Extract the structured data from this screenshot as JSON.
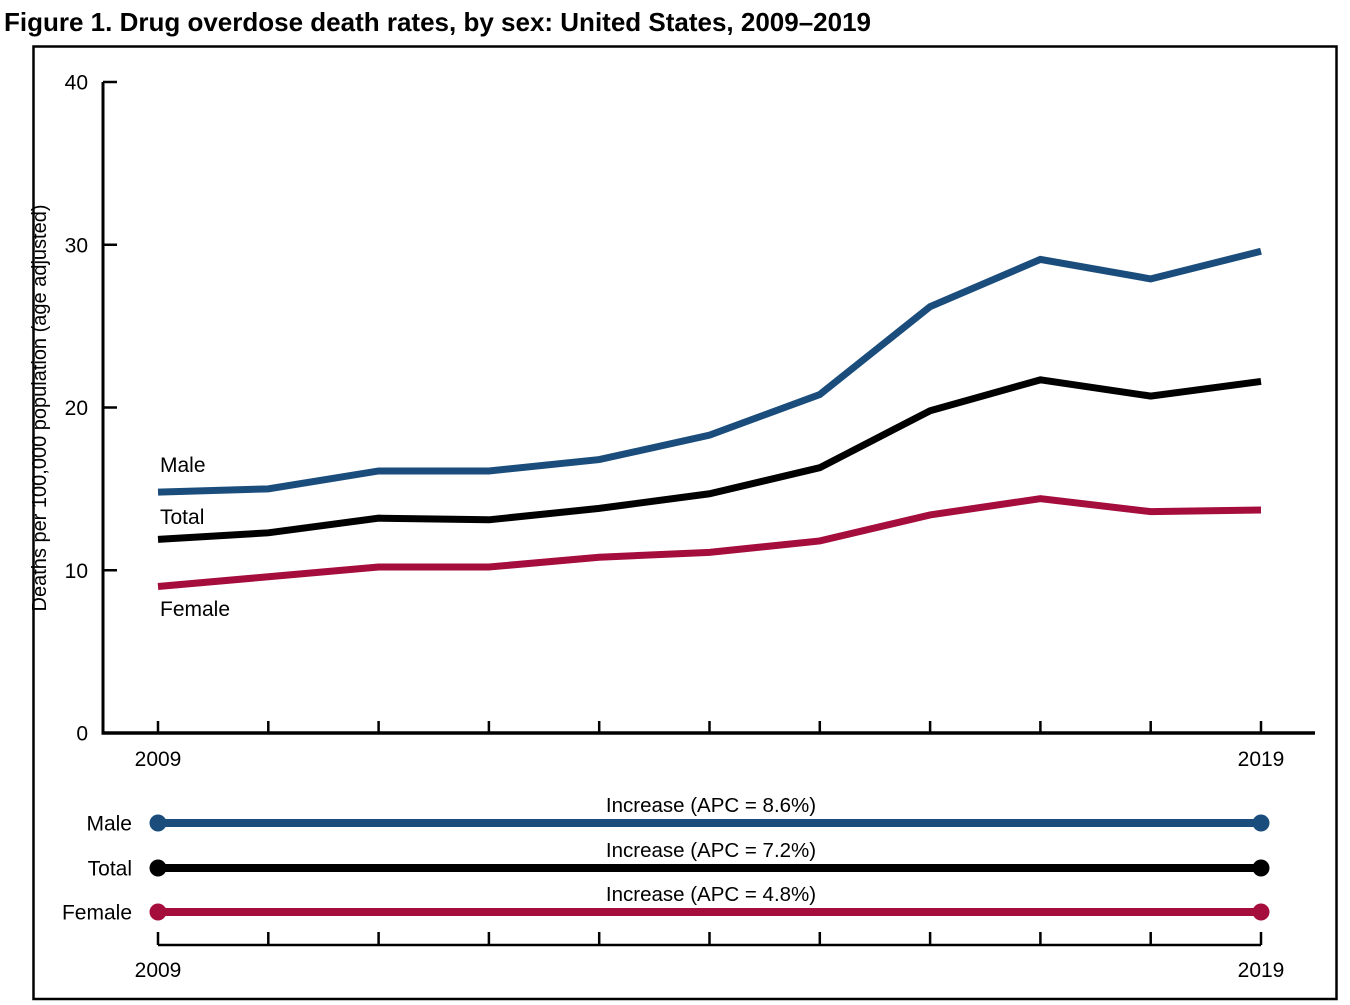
{
  "chart_data": {
    "type": "line",
    "title": "Figure 1. Drug overdose death rates, by sex: United States, 2009–2019",
    "ylabel": "Deaths per 100,000 population (age adjusted)",
    "xlabel": "",
    "x": [
      2009,
      2010,
      2011,
      2012,
      2013,
      2014,
      2015,
      2016,
      2017,
      2018,
      2019
    ],
    "x_start_label": "2009",
    "x_end_label": "2019",
    "ylim": [
      0,
      40
    ],
    "yticks": [
      0,
      10,
      20,
      30,
      40
    ],
    "ytick_labels": [
      "0",
      "10",
      "20",
      "30",
      "40"
    ],
    "grid": false,
    "legend_position": "inline-labels",
    "series": [
      {
        "name": "Male",
        "color": "#1b4d7c",
        "values": [
          14.8,
          15.0,
          16.1,
          16.1,
          16.8,
          18.3,
          20.8,
          26.2,
          29.1,
          27.9,
          29.6
        ]
      },
      {
        "name": "Total",
        "color": "#000000",
        "values": [
          11.9,
          12.3,
          13.2,
          13.1,
          13.8,
          14.7,
          16.3,
          19.8,
          21.7,
          20.7,
          21.6
        ]
      },
      {
        "name": "Female",
        "color": "#a50d3c",
        "values": [
          9.0,
          9.6,
          10.2,
          10.2,
          10.8,
          11.1,
          11.8,
          13.4,
          14.4,
          13.6,
          13.7
        ]
      }
    ]
  },
  "trend_panel": {
    "rows": [
      {
        "label": "Male",
        "annotation": "Increase (APC = 8.6%)",
        "color": "#1b4d7c"
      },
      {
        "label": "Total",
        "annotation": "Increase (APC = 7.2%)",
        "color": "#000000"
      },
      {
        "label": "Female",
        "annotation": "Increase (APC = 4.8%)",
        "color": "#a50d3c"
      }
    ],
    "x_start_label": "2009",
    "x_end_label": "2019"
  }
}
